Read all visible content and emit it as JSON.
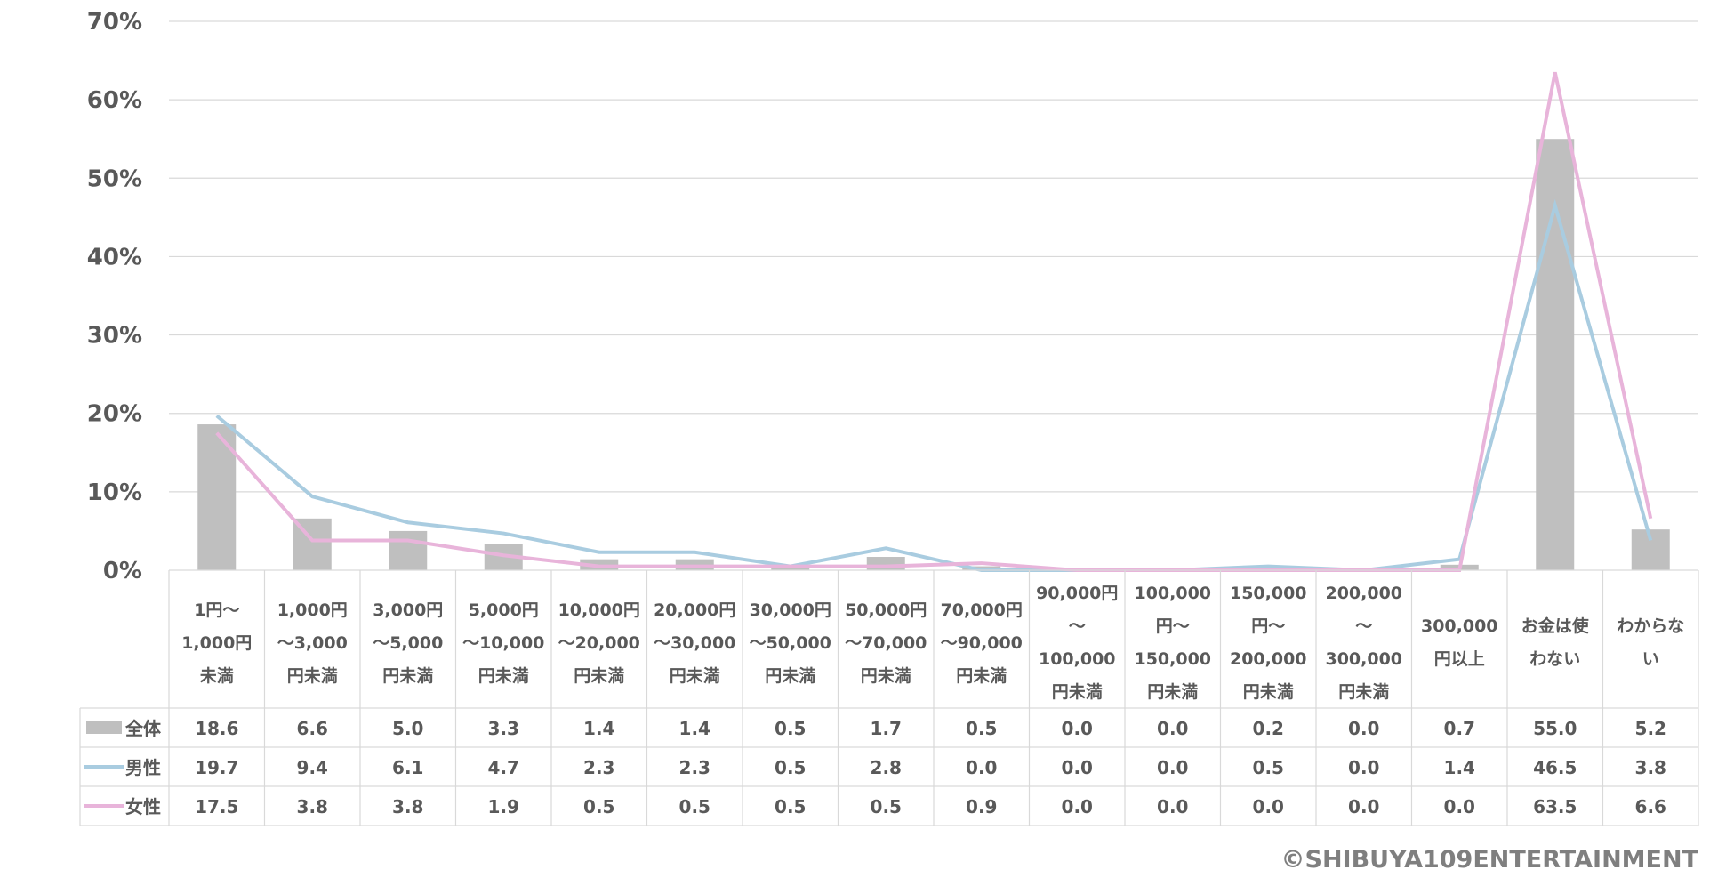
{
  "chart_data": {
    "type": "bar",
    "title": "",
    "xlabel": "",
    "ylabel": "",
    "ylim": [
      0,
      70
    ],
    "y_ticks": [
      "0%",
      "10%",
      "20%",
      "30%",
      "40%",
      "50%",
      "60%",
      "70%"
    ],
    "grid": true,
    "categories": [
      [
        "1円～",
        "1,000円",
        "未満"
      ],
      [
        "1,000円",
        "～3,000",
        "円未満"
      ],
      [
        "3,000円",
        "～5,000",
        "円未満"
      ],
      [
        "5,000円",
        "～10,000",
        "円未満"
      ],
      [
        "10,000円",
        "～20,000",
        "円未満"
      ],
      [
        "20,000円",
        "～30,000",
        "円未満"
      ],
      [
        "30,000円",
        "～50,000",
        "円未満"
      ],
      [
        "50,000円",
        "～70,000",
        "円未満"
      ],
      [
        "70,000円",
        "～90,000",
        "円未満"
      ],
      [
        "90,000円",
        "～",
        "100,000",
        "円未満"
      ],
      [
        "100,000",
        "円～",
        "150,000",
        "円未満"
      ],
      [
        "150,000",
        "円～",
        "200,000",
        "円未満"
      ],
      [
        "200,000",
        "～",
        "300,000",
        "円未満"
      ],
      [
        "300,000",
        "円以上"
      ],
      [
        "お金は使",
        "わない"
      ],
      [
        "わからな",
        "い"
      ]
    ],
    "series": [
      {
        "name": "全体",
        "type": "bar",
        "color": "#bfbfbf",
        "values": [
          18.6,
          6.6,
          5.0,
          3.3,
          1.4,
          1.4,
          0.5,
          1.7,
          0.5,
          0.0,
          0.0,
          0.2,
          0.0,
          0.7,
          55.0,
          5.2
        ]
      },
      {
        "name": "男性",
        "type": "line",
        "color": "#a9cce0",
        "values": [
          19.7,
          9.4,
          6.1,
          4.7,
          2.3,
          2.3,
          0.5,
          2.8,
          0.0,
          0.0,
          0.0,
          0.5,
          0.0,
          1.4,
          46.5,
          3.8
        ]
      },
      {
        "name": "女性",
        "type": "line",
        "color": "#e8b4da",
        "values": [
          17.5,
          3.8,
          3.8,
          1.9,
          0.5,
          0.5,
          0.5,
          0.5,
          0.9,
          0.0,
          0.0,
          0.0,
          0.0,
          0.0,
          63.5,
          6.6
        ]
      }
    ],
    "data_table": {
      "rows": [
        [
          "18.6",
          "6.6",
          "5.0",
          "3.3",
          "1.4",
          "1.4",
          "0.5",
          "1.7",
          "0.5",
          "0.0",
          "0.0",
          "0.2",
          "0.0",
          "0.7",
          "55.0",
          "5.2"
        ],
        [
          "19.7",
          "9.4",
          "6.1",
          "4.7",
          "2.3",
          "2.3",
          "0.5",
          "2.8",
          "0.0",
          "0.0",
          "0.0",
          "0.5",
          "0.0",
          "1.4",
          "46.5",
          "3.8"
        ],
        [
          "17.5",
          "3.8",
          "3.8",
          "1.9",
          "0.5",
          "0.5",
          "0.5",
          "0.5",
          "0.9",
          "0.0",
          "0.0",
          "0.0",
          "0.0",
          "0.0",
          "63.5",
          "6.6"
        ]
      ]
    }
  },
  "copyright": "©SHIBUYA109ENTERTAINMENT"
}
